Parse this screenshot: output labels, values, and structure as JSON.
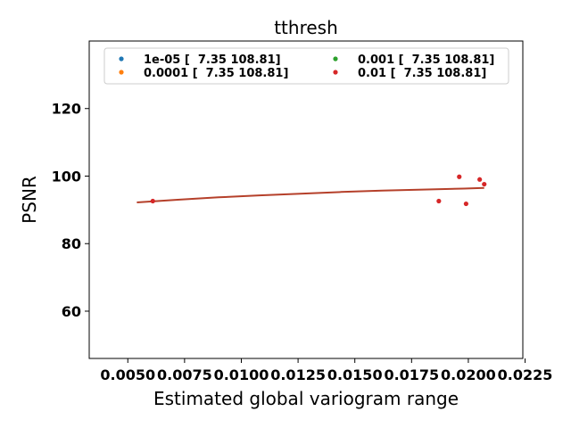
{
  "chart_data": {
    "type": "scatter",
    "title": "tthresh",
    "xlabel": "Estimated global variogram range",
    "ylabel": "PSNR",
    "xlim": [
      0.0033,
      0.0224
    ],
    "ylim": [
      46,
      140
    ],
    "x_ticks": [
      0.005,
      0.0075,
      0.01,
      0.0125,
      0.015,
      0.0175,
      0.02,
      0.0225
    ],
    "x_tick_labels": [
      "0.0050",
      "0.0075",
      "0.0100",
      "0.0125",
      "0.0150",
      "0.0175",
      "0.0200",
      "0.0225"
    ],
    "y_ticks": [
      60,
      80,
      100,
      120
    ],
    "y_tick_labels": [
      "60",
      "80",
      "100",
      "120"
    ],
    "grid": false,
    "legend_position": "top-center",
    "legend_columns": 2,
    "series": [
      {
        "name": "1e-05 [  7.35 108.81]",
        "color": "#1f77b4",
        "points": []
      },
      {
        "name": "0.0001 [  7.35 108.81]",
        "color": "#ff7f0e",
        "points": []
      },
      {
        "name": "0.001 [  7.35 108.81]",
        "color": "#2ca02c",
        "points": []
      },
      {
        "name": "0.01 [  7.35 108.81]",
        "color": "#d62728",
        "points": [
          [
            0.0061,
            92.6
          ],
          [
            0.0187,
            92.6
          ],
          [
            0.0196,
            99.8
          ],
          [
            0.0199,
            91.8
          ],
          [
            0.0205,
            99.0
          ],
          [
            0.0207,
            97.6
          ]
        ]
      }
    ],
    "fit_line": {
      "color": "#b5402a",
      "x": [
        0.0054,
        0.0072,
        0.009,
        0.0108,
        0.0126,
        0.0144,
        0.0162,
        0.018,
        0.0198,
        0.0207
      ],
      "y": [
        92.2,
        93.0,
        93.7,
        94.3,
        94.8,
        95.3,
        95.7,
        96.0,
        96.3,
        96.5
      ]
    }
  }
}
